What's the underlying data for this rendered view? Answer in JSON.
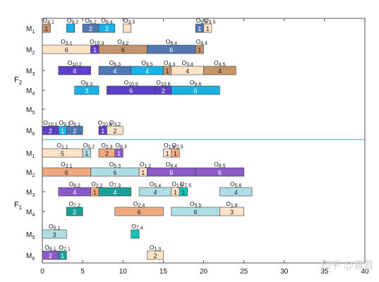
{
  "chart_data": {
    "type": "gantt",
    "title": "",
    "xlabel": "",
    "ylabel": "",
    "xlim": [
      0,
      40
    ],
    "xticks": [
      0,
      5,
      10,
      15,
      20,
      25,
      30,
      35,
      40
    ],
    "grid": false,
    "colors": {
      "1": "#1ab2e6",
      "2": "#5078b4",
      "3": "#efaa82",
      "4": "#8a5bc8",
      "5": "#1d9f99",
      "6": "#c4946a",
      "7": "#16c4b4",
      "8": "#5e3fc8",
      "9": "#aedde4",
      "10": "#ffe3c8"
    },
    "groups": [
      {
        "name": "F",
        "sub": "2",
        "machines": [
          {
            "name": "M",
            "sub": "1",
            "ops": [
              {
                "job": 4,
                "op": 1,
                "start": 0,
                "end": 1,
                "tag": "1",
                "color": "6"
              },
              {
                "job": 9,
                "op": 2,
                "start": 3,
                "end": 4,
                "tag": "",
                "color": "1"
              },
              {
                "job": 6,
                "op": 2,
                "start": 5,
                "end": 7,
                "tag": "2",
                "color": "2"
              },
              {
                "job": 9,
                "op": 4,
                "start": 7,
                "end": 9,
                "tag": "2",
                "color": "1"
              },
              {
                "job": 3,
                "op": 3,
                "start": 10,
                "end": 11,
                "tag": "",
                "color": "10"
              },
              {
                "job": 6,
                "op": 5,
                "start": 19,
                "end": 20,
                "tag": "1",
                "color": "2"
              },
              {
                "job": 3,
                "op": 5,
                "start": 20,
                "end": 21,
                "tag": "1",
                "color": "10"
              }
            ]
          },
          {
            "name": "M",
            "sub": "2",
            "ops": [
              {
                "job": 3,
                "op": 1,
                "start": 0,
                "end": 6,
                "tag": "6",
                "color": "10"
              },
              {
                "job": 10,
                "op": 3,
                "start": 6,
                "end": 7,
                "tag": "1",
                "color": "8"
              },
              {
                "job": 4,
                "op": 2,
                "start": 7,
                "end": 13,
                "tag": "6",
                "color": "6"
              },
              {
                "job": 6,
                "op": 4,
                "start": 13,
                "end": 19,
                "tag": "6",
                "color": "2"
              },
              {
                "job": 4,
                "op": 4,
                "start": 19,
                "end": 20,
                "tag": "1",
                "color": "6"
              }
            ]
          },
          {
            "name": "M",
            "sub": "3",
            "ops": [
              {
                "job": 10,
                "op": 2,
                "start": 2,
                "end": 6,
                "tag": "4",
                "color": "8"
              },
              {
                "job": 6,
                "op": 3,
                "start": 7,
                "end": 11,
                "tag": "4",
                "color": "2"
              },
              {
                "job": 9,
                "op": 5,
                "start": 11,
                "end": 15,
                "tag": "4",
                "color": "1"
              },
              {
                "job": 4,
                "op": 3,
                "start": 15,
                "end": 16,
                "tag": "1",
                "color": "6"
              },
              {
                "job": 3,
                "op": 4,
                "start": 16,
                "end": 20,
                "tag": "4",
                "color": "10"
              },
              {
                "job": 4,
                "op": 5,
                "start": 20,
                "end": 24,
                "tag": "4",
                "color": "6"
              }
            ]
          },
          {
            "name": "M",
            "sub": "4",
            "ops": [
              {
                "job": 9,
                "op": 3,
                "start": 4,
                "end": 7,
                "tag": "3",
                "color": "1"
              },
              {
                "job": 10,
                "op": 5,
                "start": 8,
                "end": 14,
                "tag": "6",
                "color": "8"
              },
              {
                "job": 10,
                "op": 6,
                "start": 14,
                "end": 16,
                "tag": "2",
                "color": "8"
              },
              {
                "job": 9,
                "op": 6,
                "start": 16,
                "end": 22,
                "tag": "6",
                "color": "1"
              }
            ]
          },
          {
            "name": "M",
            "sub": "5",
            "ops": []
          },
          {
            "name": "M",
            "sub": "6",
            "ops": [
              {
                "job": 10,
                "op": 1,
                "start": 0,
                "end": 2,
                "tag": "2",
                "color": "8"
              },
              {
                "job": 9,
                "op": 1,
                "start": 2,
                "end": 3,
                "tag": "1",
                "color": "1"
              },
              {
                "job": 6,
                "op": 1,
                "start": 3,
                "end": 5,
                "tag": "2",
                "color": "2"
              },
              {
                "job": 10,
                "op": 4,
                "start": 7,
                "end": 8,
                "tag": "1",
                "color": "8"
              },
              {
                "job": 3,
                "op": 2,
                "start": 8,
                "end": 10,
                "tag": "2",
                "color": "10"
              }
            ]
          }
        ]
      },
      {
        "name": "F",
        "sub": "1",
        "machines": [
          {
            "name": "M",
            "sub": "1",
            "ops": [
              {
                "job": 1,
                "op": 1,
                "start": 0,
                "end": 5,
                "tag": "5",
                "color": "10"
              },
              {
                "job": 5,
                "op": 2,
                "start": 5,
                "end": 6,
                "tag": "1",
                "color": "9"
              },
              {
                "job": 2,
                "op": 3,
                "start": 7,
                "end": 9,
                "tag": "2",
                "color": "3"
              },
              {
                "job": 8,
                "op": 3,
                "start": 9,
                "end": 10,
                "tag": "1",
                "color": "4"
              },
              {
                "job": 1,
                "op": 4,
                "start": 15,
                "end": 16,
                "tag": "1",
                "color": "10"
              },
              {
                "job": 2,
                "op": 5,
                "start": 16,
                "end": 17,
                "tag": "1",
                "color": "3"
              }
            ]
          },
          {
            "name": "M",
            "sub": "2",
            "ops": [
              {
                "job": 2,
                "op": 1,
                "start": 0,
                "end": 6,
                "tag": "6",
                "color": "3"
              },
              {
                "job": 5,
                "op": 3,
                "start": 6,
                "end": 12,
                "tag": "6",
                "color": "9"
              },
              {
                "job": 1,
                "op": 2,
                "start": 12,
                "end": 13,
                "tag": "1",
                "color": "10"
              },
              {
                "job": 8,
                "op": 4,
                "start": 13,
                "end": 19,
                "tag": "6",
                "color": "4"
              },
              {
                "job": 8,
                "op": 5,
                "start": 19,
                "end": 25,
                "tag": "6",
                "color": "4"
              }
            ]
          },
          {
            "name": "M",
            "sub": "3",
            "ops": [
              {
                "job": 8,
                "op": 2,
                "start": 2,
                "end": 6,
                "tag": "4",
                "color": "4"
              },
              {
                "job": 2,
                "op": 2,
                "start": 6,
                "end": 7,
                "tag": "1",
                "color": "3"
              },
              {
                "job": 7,
                "op": 3,
                "start": 7,
                "end": 11,
                "tag": "4",
                "color": "5"
              },
              {
                "job": 5,
                "op": 4,
                "start": 12,
                "end": 16,
                "tag": "4",
                "color": "9"
              },
              {
                "job": 1,
                "op": 5,
                "start": 16,
                "end": 17,
                "tag": "1",
                "color": "10"
              },
              {
                "job": 7,
                "op": 5,
                "start": 17,
                "end": 18,
                "tag": "1",
                "color": "7"
              },
              {
                "job": 5,
                "op": 6,
                "start": 22,
                "end": 26,
                "tag": "4",
                "color": "9"
              }
            ]
          },
          {
            "name": "M",
            "sub": "4",
            "ops": [
              {
                "job": 7,
                "op": 2,
                "start": 3,
                "end": 5,
                "tag": "2",
                "color": "5"
              },
              {
                "job": 2,
                "op": 4,
                "start": 9,
                "end": 15,
                "tag": "6",
                "color": "3"
              },
              {
                "job": 5,
                "op": 5,
                "start": 16,
                "end": 22,
                "tag": "6",
                "color": "9"
              },
              {
                "job": 1,
                "op": 6,
                "start": 22,
                "end": 25,
                "tag": "3",
                "color": "10"
              }
            ]
          },
          {
            "name": "M",
            "sub": "5",
            "ops": [
              {
                "job": 5,
                "op": 1,
                "start": 0,
                "end": 3,
                "tag": "3",
                "color": "9"
              },
              {
                "job": 7,
                "op": 4,
                "start": 11,
                "end": 12,
                "tag": "",
                "color": "7"
              }
            ]
          },
          {
            "name": "M",
            "sub": "6",
            "ops": [
              {
                "job": 8,
                "op": 1,
                "start": 0,
                "end": 2,
                "tag": "2",
                "color": "4"
              },
              {
                "job": 7,
                "op": 1,
                "start": 2,
                "end": 3,
                "tag": "1",
                "color": "5"
              },
              {
                "job": 1,
                "op": 3,
                "start": 13,
                "end": 15,
                "tag": "2",
                "color": "10"
              }
            ]
          }
        ]
      }
    ]
  },
  "watermark": "知乎 @震君"
}
